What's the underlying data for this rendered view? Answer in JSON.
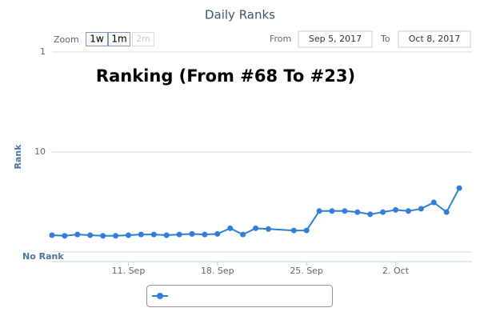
{
  "chart_data": {
    "type": "line",
    "title": "Daily Ranks",
    "annotation": "Ranking (From #68 To #23)",
    "y_label": "Rank",
    "range_selector": {
      "zoom_label": "Zoom",
      "buttons": [
        "1w",
        "1m",
        "2m"
      ],
      "from_label": "From",
      "from": "Sep 5, 2017",
      "to_label": "To",
      "to": "Oct 8, 2017"
    },
    "x": [
      "2017-09-05",
      "2017-09-06",
      "2017-09-07",
      "2017-09-08",
      "2017-09-09",
      "2017-09-10",
      "2017-09-11",
      "2017-09-12",
      "2017-09-13",
      "2017-09-14",
      "2017-09-15",
      "2017-09-16",
      "2017-09-17",
      "2017-09-18",
      "2017-09-19",
      "2017-09-20",
      "2017-09-21",
      "2017-09-22",
      "2017-09-24",
      "2017-09-25",
      "2017-09-26",
      "2017-09-27",
      "2017-09-28",
      "2017-09-29",
      "2017-09-30",
      "2017-10-01",
      "2017-10-02",
      "2017-10-03",
      "2017-10-04",
      "2017-10-05",
      "2017-10-06",
      "2017-10-07"
    ],
    "series": [
      {
        "color": "#2f7ed8",
        "values": [
          68,
          69,
          67,
          68,
          69,
          69,
          68,
          67,
          67,
          68,
          67,
          66,
          67,
          66,
          58,
          67,
          58,
          59,
          61,
          61,
          39,
          39,
          39,
          40,
          42,
          40,
          38,
          39,
          37,
          32,
          40,
          23
        ]
      }
    ],
    "xlim": [
      "2017-09-05",
      "2017-10-08"
    ],
    "xticks": [
      {
        "value": "2017-09-11",
        "label": "11. Sep"
      },
      {
        "value": "2017-09-18",
        "label": "18. Sep"
      },
      {
        "value": "2017-09-25",
        "label": "25. Sep"
      },
      {
        "value": "2017-10-02",
        "label": "2. Oct"
      }
    ],
    "ylim": [
      1,
      125
    ],
    "yticks": [
      1,
      10,
      {
        "value": 100,
        "label": "No Rank"
      }
    ],
    "y_log": true,
    "y_reversed": true,
    "grid": true
  }
}
